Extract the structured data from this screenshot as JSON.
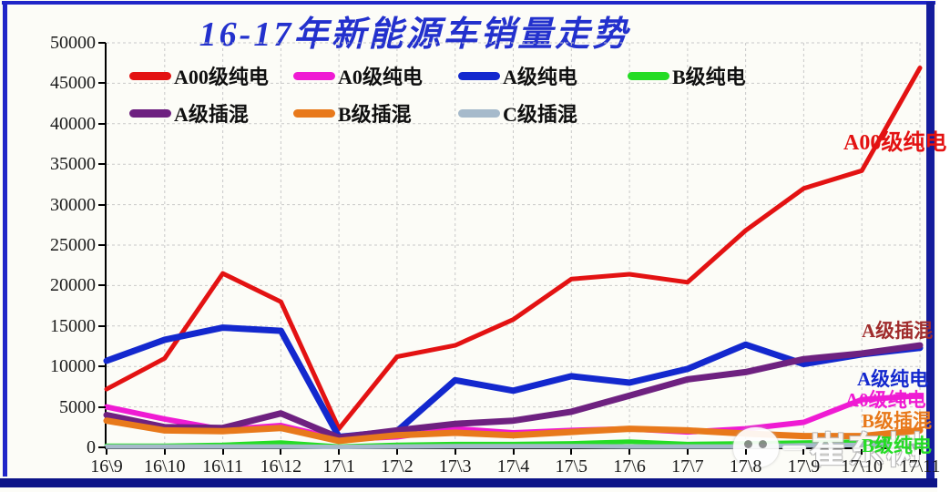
{
  "title": "16-17年新能源车销量走势",
  "watermark": {
    "text": "崔东树"
  },
  "chart_data": {
    "type": "line",
    "title": "16-17年新能源车销量走势",
    "xlabel": "",
    "ylabel": "",
    "ylim": [
      0,
      50000
    ],
    "ytick_step": 5000,
    "yticks": [
      "0",
      "5000",
      "10000",
      "15000",
      "20000",
      "25000",
      "30000",
      "35000",
      "40000",
      "45000",
      "50000"
    ],
    "grid": true,
    "legend_position": "top-left-two-rows",
    "categories": [
      "16\\9",
      "16\\10",
      "16\\11",
      "16\\12",
      "17\\1",
      "17\\2",
      "17\\3",
      "17\\4",
      "17\\5",
      "17\\6",
      "17\\7",
      "17\\8",
      "17\\9",
      "17\\10",
      "17\\11"
    ],
    "series": [
      {
        "key": "a00-bev",
        "name": "A00级纯电",
        "color": "#e31212",
        "values": [
          7200,
          11000,
          21500,
          18000,
          2300,
          11200,
          12600,
          15800,
          20800,
          21400,
          20400,
          26800,
          32000,
          34200,
          46900
        ]
      },
      {
        "key": "a0-bev",
        "name": "A0级纯电",
        "color": "#ef1bd3",
        "values": [
          5000,
          3500,
          2200,
          2700,
          1000,
          1300,
          2300,
          1800,
          2100,
          2300,
          1900,
          2300,
          3100,
          5900,
          6400
        ]
      },
      {
        "key": "a-bev",
        "name": "A级纯电",
        "color": "#1328ce",
        "values": [
          10700,
          13300,
          14800,
          14400,
          1300,
          2000,
          8300,
          7000,
          8800,
          8000,
          9700,
          12700,
          10300,
          11500,
          12300
        ]
      },
      {
        "key": "b-bev",
        "name": "B级纯电",
        "color": "#25dc25",
        "values": [
          200,
          200,
          300,
          600,
          100,
          300,
          400,
          400,
          500,
          700,
          400,
          500,
          600,
          700,
          800
        ]
      },
      {
        "key": "a-phev",
        "name": "A级插混",
        "color": "#6e2180",
        "values": [
          4000,
          2500,
          2400,
          4200,
          1200,
          2100,
          2900,
          3300,
          4400,
          6400,
          8400,
          9300,
          10900,
          11600,
          12600
        ]
      },
      {
        "key": "b-phev",
        "name": "B级插混",
        "color": "#e8791b",
        "values": [
          3300,
          2100,
          2000,
          2400,
          800,
          1500,
          1800,
          1500,
          1900,
          2300,
          2100,
          1700,
          1400,
          1400,
          2100
        ]
      },
      {
        "key": "c-phev",
        "name": "C级插混",
        "color": "#a6bacb",
        "values": [
          100,
          100,
          100,
          100,
          50,
          100,
          150,
          150,
          150,
          100,
          100,
          100,
          250,
          300,
          300
        ]
      }
    ],
    "annotations": [
      {
        "key": "a00-bev",
        "text": "A00级纯电",
        "color": "#e31212",
        "left": 926,
        "top": 136
      },
      {
        "key": "a-phev",
        "text": "A级插混",
        "color": "#a02c2c",
        "left": 946,
        "top": 347
      },
      {
        "key": "a-bev",
        "text": "A级纯电",
        "color": "#1328ce",
        "left": 941,
        "top": 400
      },
      {
        "key": "a0-bev",
        "text": "A0级纯电",
        "color": "#ef1bd3",
        "left": 928,
        "top": 423
      },
      {
        "key": "b-phev",
        "text": "B级插混",
        "color": "#e8791b",
        "left": 946,
        "top": 446
      },
      {
        "key": "b-bev",
        "text": "B级纯电",
        "color": "#25dc25",
        "left": 946,
        "top": 473
      }
    ]
  }
}
